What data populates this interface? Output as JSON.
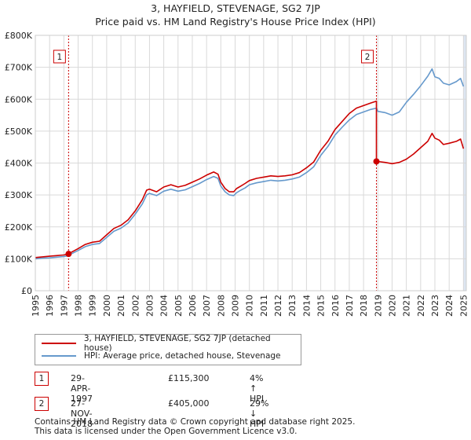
{
  "title": "3, HAYFIELD, STEVENAGE, SG2 7JP",
  "subtitle": "Price paid vs. HM Land Registry's House Price Index (HPI)",
  "colors": {
    "property": "#cc0000",
    "hpi": "#6699cc",
    "shade": "#dde6f2",
    "grid": "#d9d9d9",
    "marker": "#cc0000"
  },
  "chart_data": {
    "type": "line",
    "title": "3, HAYFIELD, STEVENAGE, SG2 7JP",
    "subtitle": "Price paid vs. HM Land Registry's House Price Index (HPI)",
    "xlabel": "",
    "ylabel": "",
    "xlim": [
      1995,
      2025.2
    ],
    "ylim": [
      0,
      800000
    ],
    "yticks": [
      {
        "value": 0,
        "label": "£0"
      },
      {
        "value": 100000,
        "label": "£100K"
      },
      {
        "value": 200000,
        "label": "£200K"
      },
      {
        "value": 300000,
        "label": "£300K"
      },
      {
        "value": 400000,
        "label": "£400K"
      },
      {
        "value": 500000,
        "label": "£500K"
      },
      {
        "value": 600000,
        "label": "£600K"
      },
      {
        "value": 700000,
        "label": "£700K"
      },
      {
        "value": 800000,
        "label": "£800K"
      }
    ],
    "xticks": [
      "1995",
      "1996",
      "1997",
      "1998",
      "1999",
      "2000",
      "2001",
      "2002",
      "2003",
      "2004",
      "2005",
      "2006",
      "2007",
      "2008",
      "2009",
      "2010",
      "2011",
      "2012",
      "2013",
      "2014",
      "2015",
      "2016",
      "2017",
      "2018",
      "2019",
      "2020",
      "2021",
      "2022",
      "2023",
      "2024",
      "2025"
    ],
    "grid": true,
    "shaded_region": {
      "from": 2025.0,
      "to": 2025.2
    },
    "series": [
      {
        "name": "3, HAYFIELD, STEVENAGE, SG2 7JP (detached house)",
        "x": [
          1995.0,
          1995.5,
          1996.0,
          1996.5,
          1997.0,
          1997.33,
          1997.5,
          1998.0,
          1998.5,
          1999.0,
          1999.5,
          2000.0,
          2000.5,
          2001.0,
          2001.5,
          2002.0,
          2002.5,
          2002.8,
          2003.0,
          2003.5,
          2004.0,
          2004.5,
          2005.0,
          2005.5,
          2006.0,
          2006.5,
          2007.0,
          2007.5,
          2007.8,
          2008.0,
          2008.3,
          2008.6,
          2008.9,
          2009.1,
          2009.4,
          2009.7,
          2010.0,
          2010.5,
          2011.0,
          2011.5,
          2012.0,
          2012.5,
          2013.0,
          2013.5,
          2014.0,
          2014.5,
          2015.0,
          2015.5,
          2016.0,
          2016.5,
          2017.0,
          2017.5,
          2018.0,
          2018.5,
          2018.9,
          2018.904,
          2019.0,
          2019.5,
          2020.0,
          2020.5,
          2021.0,
          2021.5,
          2022.0,
          2022.5,
          2022.8,
          2023.0,
          2023.3,
          2023.6,
          2024.0,
          2024.5,
          2024.8,
          2025.0
        ],
        "y": [
          104000,
          106000,
          108000,
          110000,
          112000,
          115300,
          120000,
          132000,
          145000,
          152000,
          155000,
          175000,
          195000,
          205000,
          222000,
          250000,
          285000,
          315000,
          318000,
          310000,
          325000,
          332000,
          325000,
          330000,
          340000,
          350000,
          362000,
          372000,
          365000,
          340000,
          320000,
          310000,
          310000,
          320000,
          328000,
          336000,
          345000,
          352000,
          356000,
          360000,
          358000,
          360000,
          363000,
          370000,
          385000,
          403000,
          440000,
          468000,
          505000,
          530000,
          555000,
          572000,
          580000,
          588000,
          594000,
          405000,
          405000,
          402000,
          398000,
          402000,
          412000,
          428000,
          448000,
          468000,
          493000,
          478000,
          472000,
          458000,
          462000,
          468000,
          475000,
          445000
        ]
      },
      {
        "name": "HPI: Average price, detached house, Stevenage",
        "x": [
          1995.0,
          1995.5,
          1996.0,
          1996.5,
          1997.0,
          1997.33,
          1997.5,
          1998.0,
          1998.5,
          1999.0,
          1999.5,
          2000.0,
          2000.5,
          2001.0,
          2001.5,
          2002.0,
          2002.5,
          2002.8,
          2003.0,
          2003.5,
          2004.0,
          2004.5,
          2005.0,
          2005.5,
          2006.0,
          2006.5,
          2007.0,
          2007.5,
          2007.8,
          2008.0,
          2008.3,
          2008.6,
          2008.9,
          2009.1,
          2009.4,
          2009.7,
          2010.0,
          2010.5,
          2011.0,
          2011.5,
          2012.0,
          2012.5,
          2013.0,
          2013.5,
          2014.0,
          2014.5,
          2015.0,
          2015.5,
          2016.0,
          2016.5,
          2017.0,
          2017.5,
          2018.0,
          2018.5,
          2018.9,
          2019.0,
          2019.5,
          2020.0,
          2020.5,
          2021.0,
          2021.5,
          2022.0,
          2022.5,
          2022.8,
          2023.0,
          2023.3,
          2023.6,
          2024.0,
          2024.5,
          2024.8,
          2025.0
        ],
        "y": [
          100000,
          102000,
          103000,
          105000,
          107000,
          110000,
          115000,
          126000,
          138000,
          145000,
          148000,
          167000,
          186000,
          196000,
          212000,
          240000,
          272000,
          300000,
          305000,
          298000,
          312000,
          318000,
          312000,
          316000,
          326000,
          336000,
          348000,
          358000,
          352000,
          328000,
          310000,
          300000,
          298000,
          307000,
          315000,
          322000,
          332000,
          338000,
          342000,
          346000,
          344000,
          346000,
          350000,
          356000,
          370000,
          388000,
          424000,
          452000,
          488000,
          512000,
          535000,
          552000,
          560000,
          568000,
          572000,
          562000,
          558000,
          550000,
          560000,
          590000,
          615000,
          642000,
          672000,
          695000,
          670000,
          665000,
          650000,
          645000,
          655000,
          665000,
          640000
        ]
      }
    ],
    "annotations": [
      {
        "id": "1",
        "x": 1997.33,
        "y": 115300
      },
      {
        "id": "2",
        "x": 2018.904,
        "y": 405000
      }
    ],
    "legend": "below"
  },
  "legend": {
    "property": "3, HAYFIELD, STEVENAGE, SG2 7JP (detached house)",
    "hpi": "HPI: Average price, detached house, Stevenage"
  },
  "transactions": [
    {
      "num": "1",
      "date": "29-APR-1997",
      "price": "£115,300",
      "hpi": "4% ↑ HPI"
    },
    {
      "num": "2",
      "date": "27-NOV-2018",
      "price": "£405,000",
      "hpi": "29% ↓ HPI"
    }
  ],
  "footer": {
    "line1": "Contains HM Land Registry data © Crown copyright and database right 2025.",
    "line2": "This data is licensed under the Open Government Licence v3.0."
  }
}
